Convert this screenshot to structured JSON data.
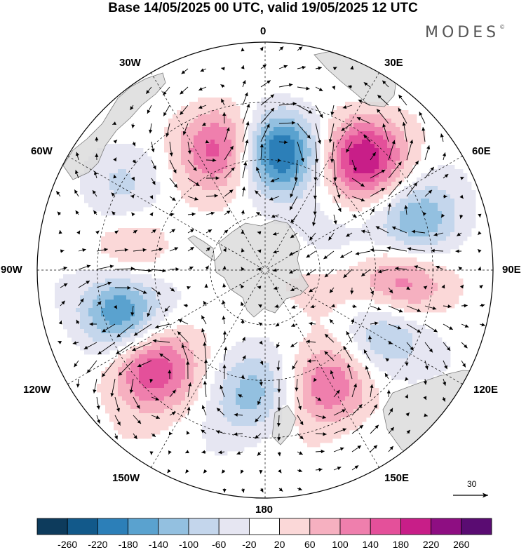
{
  "header": {
    "title": "Base 14/05/2025 00 UTC, valid 19/05/2025 12 UTC",
    "brand": "MODES"
  },
  "map": {
    "projection": "south polar stereographic",
    "longitude_labels": {
      "top": "0",
      "top_left": "30W",
      "top_right": "30E",
      "upper_left": "60W",
      "upper_right": "60E",
      "left": "90W",
      "right": "90E",
      "lower_left": "120W",
      "lower_right": "120E",
      "bottom_left": "150W",
      "bottom_right": "150E",
      "bottom": "180"
    },
    "reference_vector": {
      "value": "30"
    },
    "colors": {
      "land": "#d9d9d9",
      "coast": "#7a7a7a",
      "grid": "#000000",
      "vector": "#000000"
    },
    "anomalies": [
      {
        "lon": 5,
        "colat": 22,
        "value": -240
      },
      {
        "lon": -20,
        "colat": 24,
        "value": 170
      },
      {
        "lon": 40,
        "colat": 27,
        "value": 210
      },
      {
        "lon": 72,
        "colat": 28,
        "value": -150
      },
      {
        "lon": 95,
        "colat": 24,
        "value": 150
      },
      {
        "lon": 117,
        "colat": 24,
        "value": -130
      },
      {
        "lon": 152,
        "colat": 23,
        "value": 140
      },
      {
        "lon": -172,
        "colat": 22,
        "value": -120
      },
      {
        "lon": -130,
        "colat": 27,
        "value": 190
      },
      {
        "lon": -105,
        "colat": 27,
        "value": -190
      },
      {
        "lon": -80,
        "colat": 25,
        "value": 60
      },
      {
        "lon": -60,
        "colat": 30,
        "value": -60
      },
      {
        "lon": 95,
        "colat": 12,
        "value": 60
      },
      {
        "lon": 70,
        "colat": 12,
        "value": -60
      }
    ]
  },
  "colorbar": {
    "levels": [
      "-260",
      "-220",
      "-180",
      "-140",
      "-100",
      "-60",
      "-20",
      "20",
      "60",
      "100",
      "140",
      "180",
      "220",
      "260"
    ],
    "colors": [
      "#0d3b5c",
      "#12598a",
      "#2c7fb8",
      "#5aa2cf",
      "#93c0e0",
      "#c4d6ec",
      "#e6e6f2",
      "#ffffff",
      "#fbd8d8",
      "#f6b0c0",
      "#ef7fad",
      "#e4509a",
      "#c81e88",
      "#8e0e82",
      "#5a0c72"
    ]
  }
}
